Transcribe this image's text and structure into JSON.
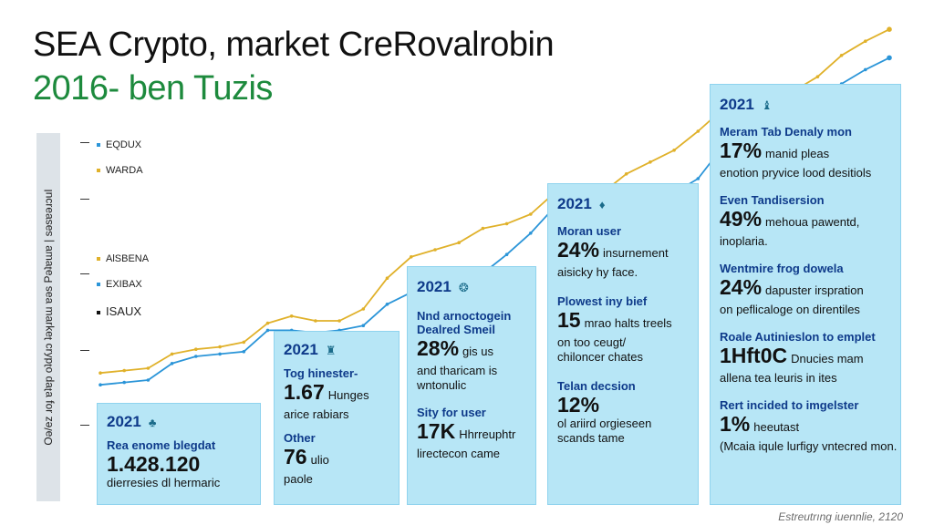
{
  "colors": {
    "gold": "#e0b12a",
    "blue": "#2b95d8",
    "green": "#1d8a3d",
    "navy": "#0e3a8a",
    "card_bg": "#b7e6f6"
  },
  "header": {
    "title": "SEA Crypto, market CreRovalrobin",
    "subtitle": "2016- ben Tuzis"
  },
  "yaxis": {
    "label": "Oǝ/ez ɹoɟ ɐʇɐp oʇdʎɹɔ ʇǝʞɹɐɯ ɐǝs Pǝʇɐɯɐ | sǝsɐǝɹɔuI"
  },
  "legend": [
    {
      "label": "EQDUX",
      "color": "#2b95d8"
    },
    {
      "label": "WARDA",
      "color": "#e0b12a"
    },
    {
      "label": "AlSBENA",
      "color": "#e0b12a"
    },
    {
      "label": "EXIBAX",
      "color": "#2b95d8"
    },
    {
      "label": "ISAUX",
      "color": "#111111"
    }
  ],
  "chart_data": {
    "type": "line",
    "series": [
      {
        "name": "WARDA",
        "color": "#e0b12a",
        "values": [
          0.08,
          0.09,
          0.1,
          0.16,
          0.18,
          0.19,
          0.21,
          0.29,
          0.32,
          0.3,
          0.3,
          0.35,
          0.48,
          0.57,
          0.6,
          0.63,
          0.69,
          0.71,
          0.75,
          0.84,
          0.8,
          0.84,
          0.92,
          0.97,
          1.02,
          1.1,
          1.19,
          1.21,
          1.24,
          1.27,
          1.33,
          1.42,
          1.48,
          1.53
        ]
      },
      {
        "name": "EQDUX",
        "color": "#2b95d8",
        "values": [
          0.03,
          0.04,
          0.05,
          0.12,
          0.15,
          0.16,
          0.17,
          0.26,
          0.26,
          0.25,
          0.26,
          0.28,
          0.37,
          0.42,
          0.42,
          0.45,
          0.5,
          0.58,
          0.67,
          0.78,
          0.73,
          0.73,
          0.7,
          0.77,
          0.84,
          0.9,
          1.03,
          1.14,
          1.17,
          1.19,
          1.22,
          1.3,
          1.36,
          1.41
        ]
      }
    ],
    "ylim": [
      0,
      1.6
    ]
  },
  "cards": [
    {
      "year": "2021",
      "icon": "leaf-icon",
      "glyph": "♣",
      "stats": [
        {
          "head": "Rea enome blegdat",
          "value": "1.428.120",
          "text": "",
          "note": "dierresies dl hermaric"
        }
      ]
    },
    {
      "year": "2021",
      "icon": "badge-icon",
      "glyph": "♜",
      "stats": [
        {
          "head": "Tog hinester-",
          "value": "1.67",
          "text": "Hunges",
          "note": "arice rabiars"
        },
        {
          "head": "Other",
          "value": "76",
          "text": "ulio",
          "note": "paole"
        }
      ]
    },
    {
      "year": "2021",
      "icon": "coin-icon",
      "glyph": "❂",
      "stats": [
        {
          "head": "Nnd arnoctogein",
          "head2": "Dealred Smeil",
          "value": "28%",
          "text": "gis us",
          "note": "and tharicam is",
          "note2": "wntonulic"
        },
        {
          "head": "Sity for user",
          "value": "17K",
          "text": "Hhrreuphtr",
          "note": "lirectecon came"
        }
      ]
    },
    {
      "year": "2021",
      "icon": "bulb-icon",
      "glyph": "♦",
      "stats": [
        {
          "head": "Moran user",
          "value": "24%",
          "text": "insurnement",
          "note": "aisicky hy face."
        },
        {
          "head": "Plowest iny bief",
          "value": "15",
          "text": "mrao halts treels",
          "note": "on too ceugt/",
          "note2": "chiloncer chates"
        },
        {
          "head": "Telan decsion",
          "value": "12%",
          "text": "",
          "note": "ol ariird orgieseen",
          "note2": "scands tame"
        }
      ]
    },
    {
      "year": "2021",
      "icon": "trophy-icon",
      "glyph": "♝",
      "stats": [
        {
          "head": "Meram Tab Denaly mon",
          "value": "17%",
          "text": "manid pleas",
          "note": "enotion pryvice lood desitiols"
        },
        {
          "head": "Even Tandisersion",
          "value": "49%",
          "text": "mehoua pawentd,",
          "note": "inoplaria."
        },
        {
          "head": "Wentmire frog dowela",
          "value": "24%",
          "text": "dapuster irspration",
          "note": "on peflicaloge on direntiles"
        },
        {
          "head": "Roale Autinieslon to emplet",
          "value": "1Hft0C",
          "text": "Dnucies mam",
          "note": "allena tea leuris in ites"
        },
        {
          "head": "Rert incided to imgelster",
          "value": "1%",
          "text": "heeutast",
          "note": "(Mcaia iqule lurfigy vntecred mon."
        }
      ]
    }
  ],
  "footer": {
    "text": "Estreutrıng iuennlie, 2120"
  }
}
